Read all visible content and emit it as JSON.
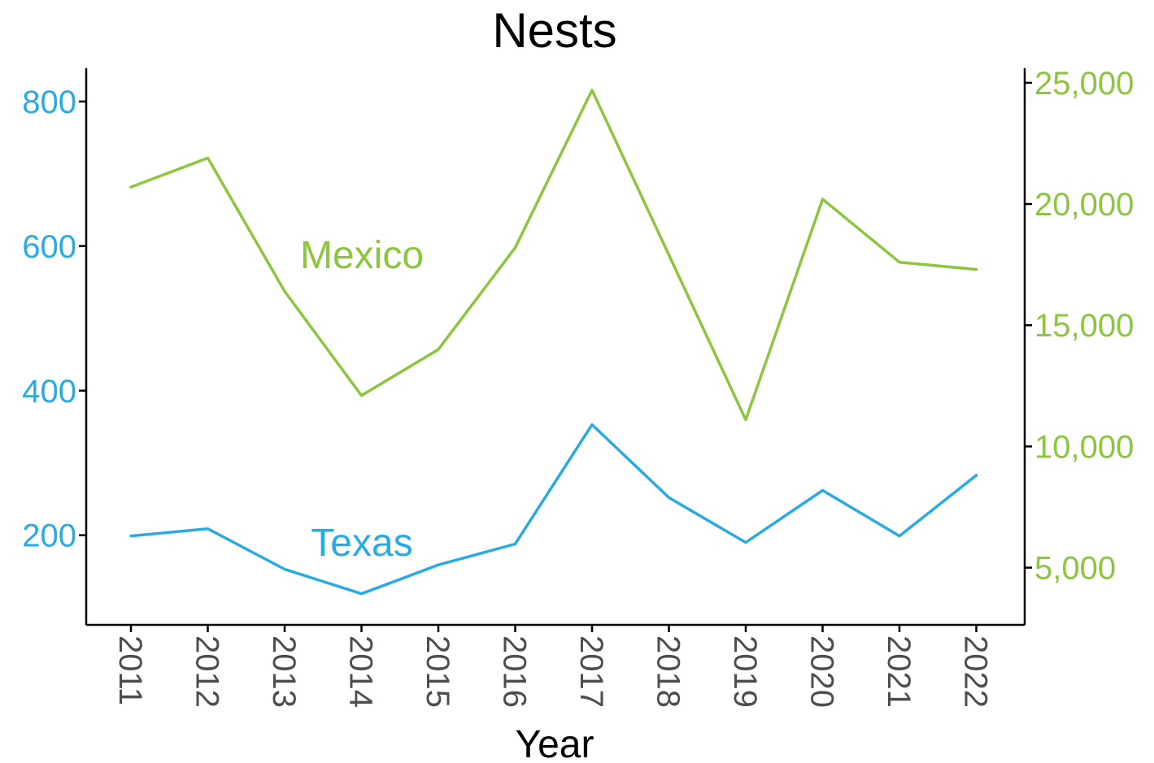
{
  "chart_data": {
    "type": "line",
    "title": "Nests",
    "xlabel": "Year",
    "ylabel_left": "",
    "ylabel_right": "",
    "grid": false,
    "x": [
      "2011",
      "2012",
      "2013",
      "2014",
      "2015",
      "2016",
      "2017",
      "2018",
      "2019",
      "2020",
      "2021",
      "2022"
    ],
    "left_axis": {
      "color": "#29abe2",
      "ylim": [
        76,
        846
      ],
      "ticks": [
        200,
        400,
        600,
        800
      ],
      "tick_labels": [
        "200",
        "400",
        "600",
        "800"
      ]
    },
    "right_axis": {
      "color": "#8cc63f",
      "ylim": [
        2640,
        25600
      ],
      "ticks": [
        5000,
        10000,
        15000,
        20000,
        25000
      ],
      "tick_labels": [
        "5,000",
        "10,000",
        "15,000",
        "20,000",
        "25,000"
      ]
    },
    "series": [
      {
        "name": "Mexico",
        "axis": "right",
        "color": "#8cc63f",
        "values": [
          20700,
          21900,
          16400,
          12100,
          14000,
          18200,
          24700,
          17900,
          11100,
          20200,
          17600,
          17300
        ]
      },
      {
        "name": "Texas",
        "axis": "left",
        "color": "#29abe2",
        "values": [
          199,
          209,
          153,
          119,
          159,
          188,
          353,
          252,
          190,
          262,
          199,
          283
        ]
      }
    ]
  }
}
